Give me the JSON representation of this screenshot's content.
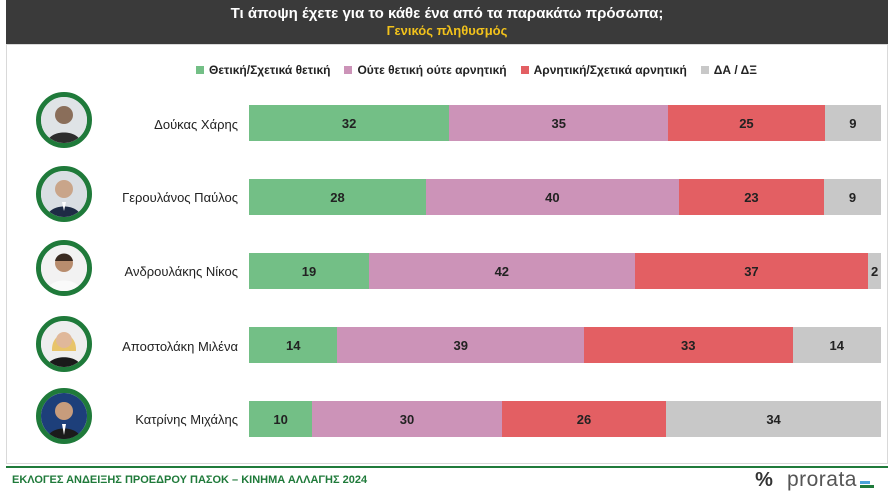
{
  "header": {
    "title": "Τι άποψη έχετε για το κάθε ένα από τα παρακάτω πρόσωπα;",
    "subtitle": "Γενικός πληθυσμός"
  },
  "colors": {
    "positive": "#73bf86",
    "neutral": "#cc93b8",
    "negative": "#e35f63",
    "dk": "#c8c8c8"
  },
  "chart_data": {
    "type": "bar",
    "orientation": "horizontal-stacked-100",
    "categories": [
      "Δούκας Χάρης",
      "Γερουλάνος Παύλος",
      "Ανδρουλάκης Νίκος",
      "Αποστολάκη Μιλένα",
      "Κατρίνης Μιχάλης"
    ],
    "series": [
      {
        "name": "Θετική/Σχετικά θετική",
        "values": [
          32,
          28,
          19,
          14,
          10
        ]
      },
      {
        "name": "Ούτε θετική ούτε αρνητική",
        "values": [
          35,
          40,
          42,
          39,
          30
        ]
      },
      {
        "name": "Αρνητική/Σχετικά αρνητική",
        "values": [
          25,
          23,
          37,
          33,
          26
        ]
      },
      {
        "name": "ΔΑ / ΔΞ",
        "values": [
          9,
          9,
          2,
          14,
          34
        ]
      }
    ],
    "legend": "top"
  },
  "footer": {
    "text": "ΕΚΛΟΓΕΣ ΑΝΔΕΙΞΗΣ ΠΡΟΕΔΡΟΥ ΠΑΣΟΚ – ΚΙΝΗΜΑ ΑΛΛΑΓΗΣ 2024",
    "brand_symbol": "%",
    "brand_name": "prorata"
  }
}
